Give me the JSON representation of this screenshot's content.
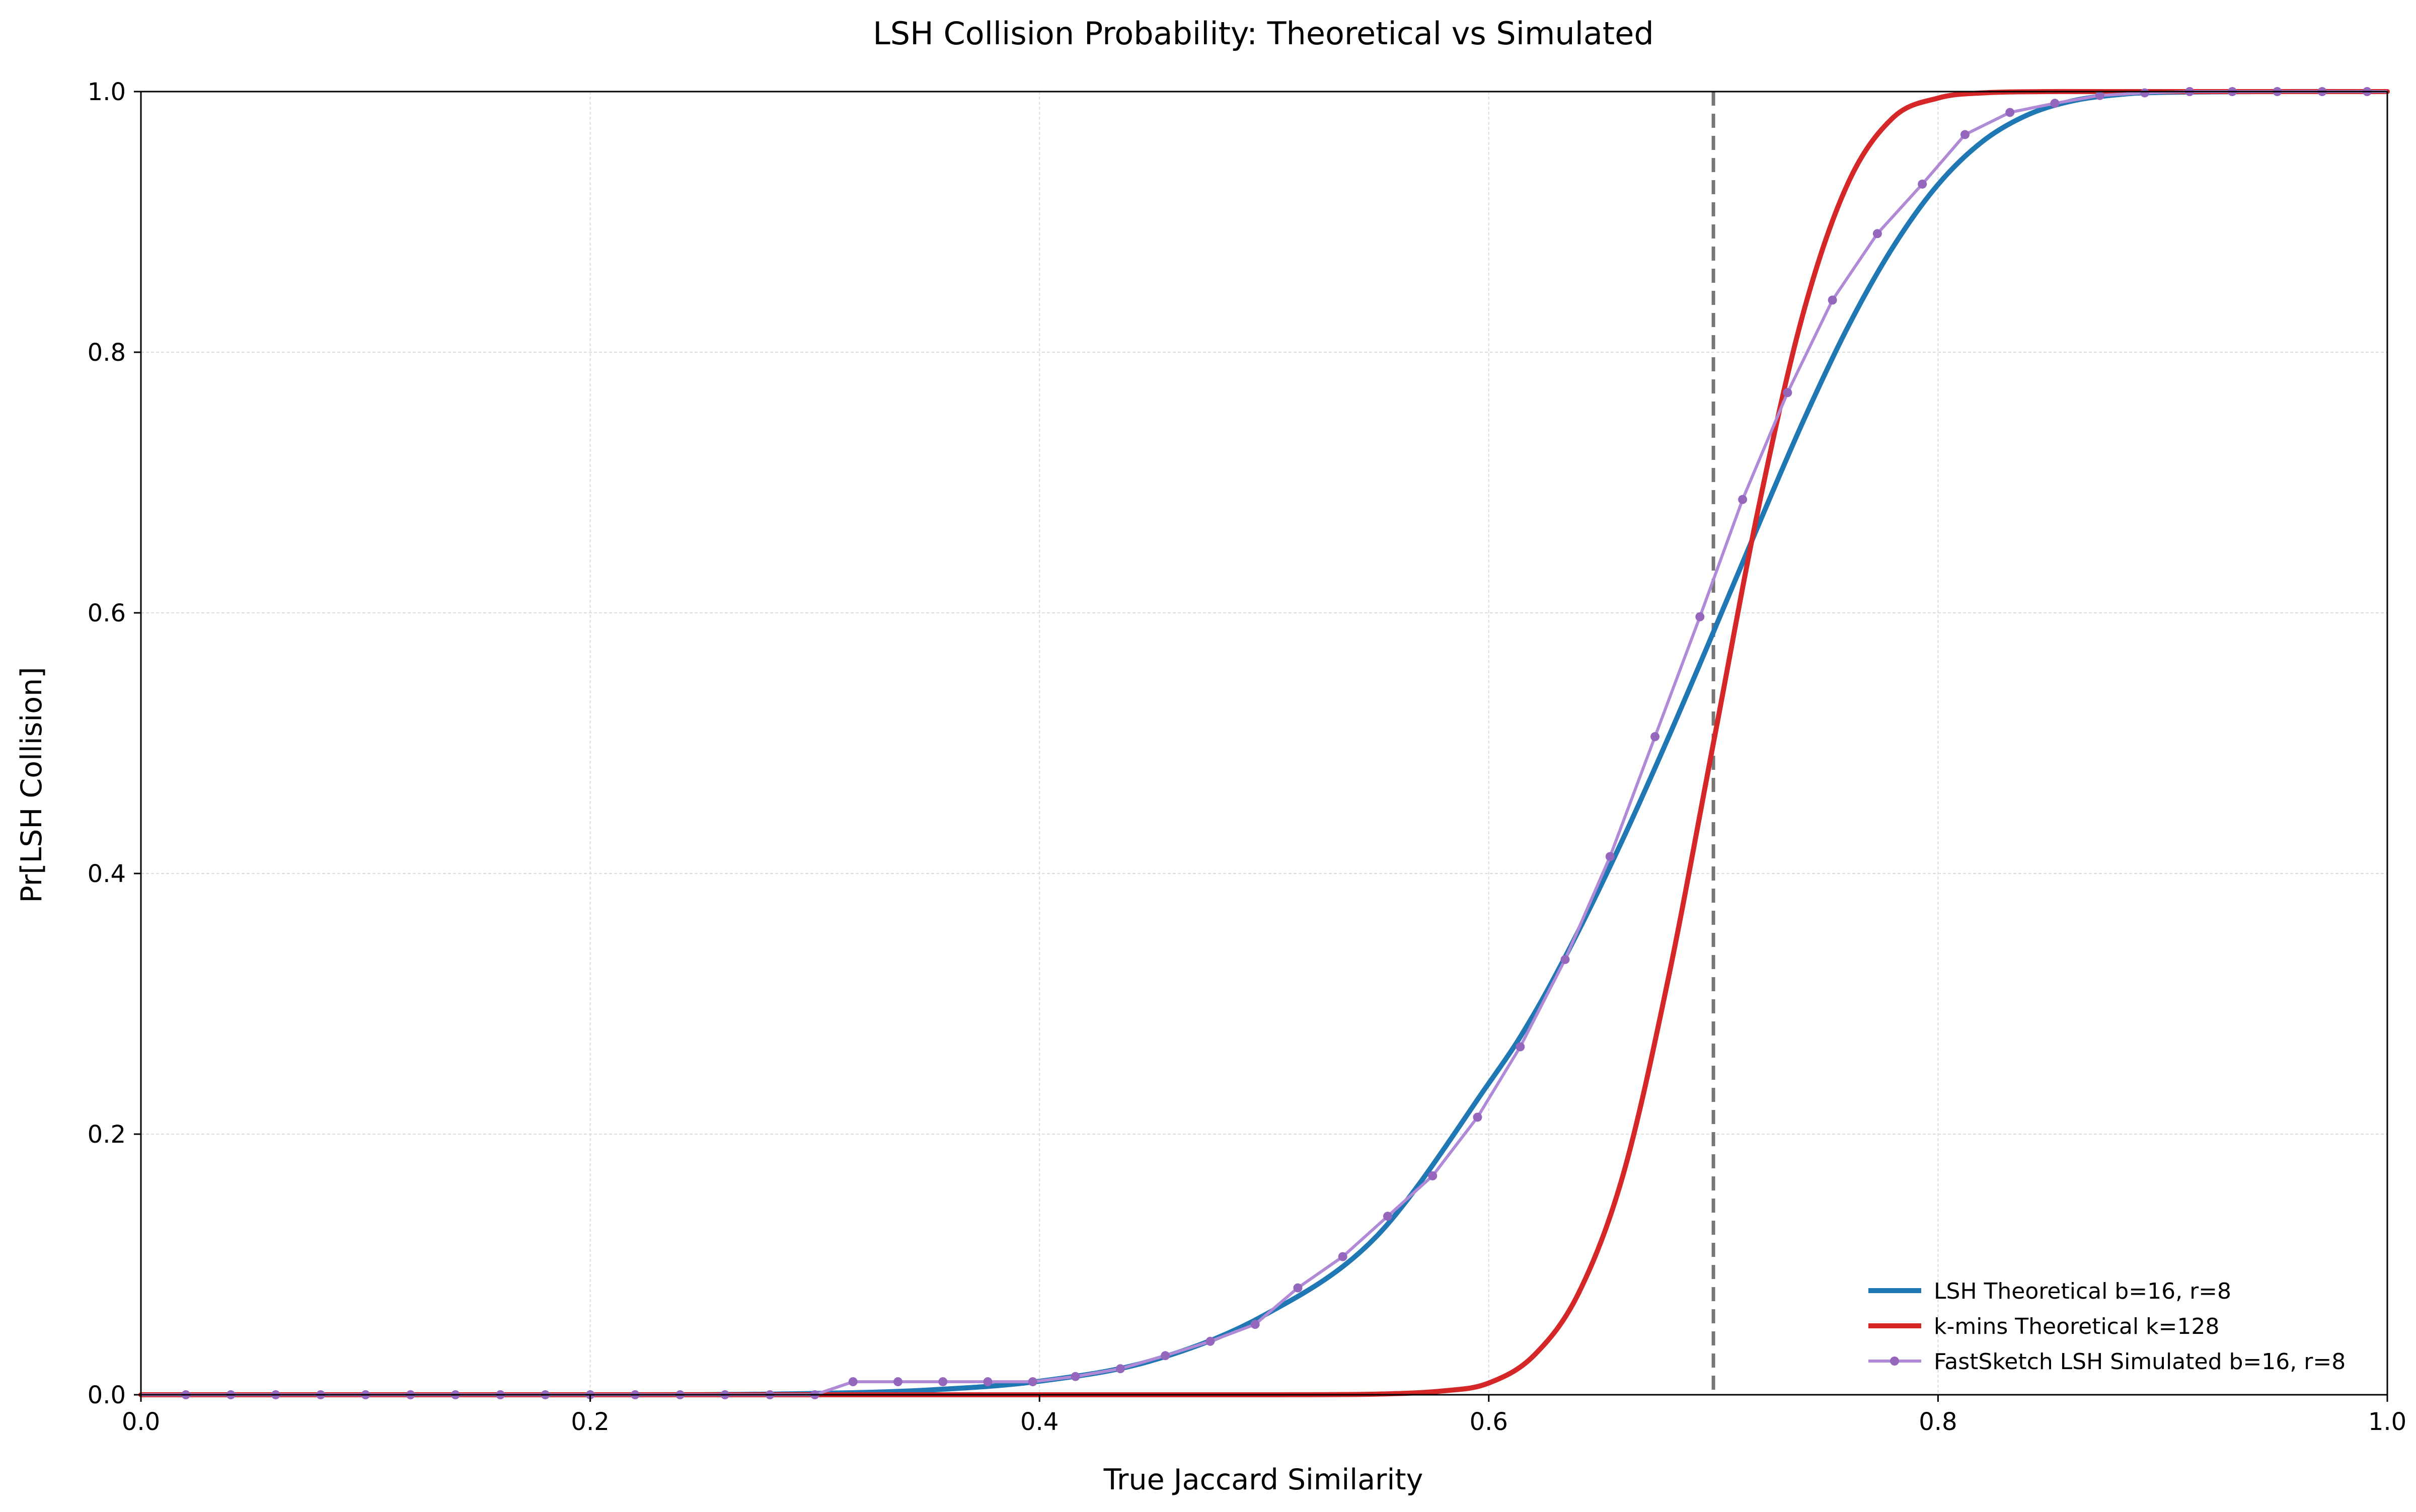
{
  "chart_data": {
    "type": "line",
    "title": "LSH Collision Probability: Theoretical vs Simulated",
    "xlabel": "True Jaccard Similarity",
    "ylabel": "Pr[LSH Collision]",
    "xlim": [
      0.0,
      1.0
    ],
    "ylim": [
      0.0,
      1.0
    ],
    "xticks": [
      "0.0",
      "0.2",
      "0.4",
      "0.6",
      "0.8",
      "1.0"
    ],
    "yticks": [
      "0.0",
      "0.2",
      "0.4",
      "0.6",
      "0.8",
      "1.0"
    ],
    "grid": true,
    "legend_position": "bottom-right",
    "threshold_line": {
      "x": 0.7,
      "style": "dashed",
      "color": "#777777"
    },
    "series": [
      {
        "name": "LSH Theoretical b=16, r=8",
        "kind": "function",
        "formula": "1-(1-s^8)^16",
        "color": "#1f77b4",
        "x": [
          0.0,
          0.05,
          0.1,
          0.15,
          0.2,
          0.25,
          0.3,
          0.35,
          0.4,
          0.45,
          0.5,
          0.55,
          0.6,
          0.62,
          0.64,
          0.66,
          0.68,
          0.7,
          0.72,
          0.74,
          0.76,
          0.78,
          0.8,
          0.82,
          0.84,
          0.86,
          0.88,
          0.9,
          0.95,
          1.0
        ],
        "y": [
          0.0,
          0.0,
          0.0,
          0.0,
          0.0,
          0.0001,
          0.001,
          0.0036,
          0.0104,
          0.0262,
          0.061,
          0.1215,
          0.239,
          0.2918,
          0.3561,
          0.4275,
          0.5045,
          0.5852,
          0.6672,
          0.7471,
          0.8198,
          0.8808,
          0.9287,
          0.962,
          0.9822,
          0.9929,
          0.9976,
          0.9994,
          1.0,
          1.0
        ]
      },
      {
        "name": "k-mins Theoretical k=128",
        "kind": "function",
        "color": "#d62728",
        "x": [
          0.0,
          0.1,
          0.2,
          0.3,
          0.4,
          0.5,
          0.55,
          0.58,
          0.6,
          0.62,
          0.64,
          0.66,
          0.68,
          0.7,
          0.72,
          0.74,
          0.76,
          0.78,
          0.8,
          0.82,
          0.85,
          0.9,
          1.0
        ],
        "y": [
          0.0,
          0.0,
          0.0,
          0.0,
          0.0,
          0.0,
          0.0005,
          0.003,
          0.009,
          0.03,
          0.078,
          0.17,
          0.32,
          0.5,
          0.68,
          0.83,
          0.93,
          0.98,
          0.995,
          0.999,
          1.0,
          1.0,
          1.0
        ]
      },
      {
        "name": "FastSketch LSH Simulated b=16, r=8",
        "kind": "points",
        "color": "#9467bd",
        "line_color": "#b08ad6",
        "x": [
          0.0,
          0.02,
          0.04,
          0.06,
          0.08,
          0.1,
          0.12,
          0.14,
          0.16,
          0.18,
          0.2,
          0.22,
          0.24,
          0.26,
          0.28,
          0.3,
          0.317,
          0.337,
          0.357,
          0.377,
          0.397,
          0.416,
          0.436,
          0.456,
          0.476,
          0.496,
          0.515,
          0.535,
          0.555,
          0.575,
          0.595,
          0.614,
          0.634,
          0.654,
          0.674,
          0.694,
          0.713,
          0.733,
          0.753,
          0.773,
          0.793,
          0.812,
          0.832,
          0.852,
          0.872,
          0.892,
          0.912,
          0.931,
          0.951,
          0.971,
          0.991,
          1.0
        ],
        "y": [
          0.0,
          0.0,
          0.0,
          0.0,
          0.0,
          0.0,
          0.0,
          0.0,
          0.0,
          0.0,
          0.0,
          0.0,
          0.0,
          0.0,
          0.0,
          0.0,
          0.01,
          0.01,
          0.01,
          0.01,
          0.01,
          0.014,
          0.02,
          0.03,
          0.041,
          0.054,
          0.082,
          0.106,
          0.137,
          0.168,
          0.213,
          0.267,
          0.334,
          0.413,
          0.505,
          0.597,
          0.687,
          0.769,
          0.84,
          0.891,
          0.929,
          0.967,
          0.984,
          0.991,
          0.997,
          0.999,
          1.0,
          1.0,
          1.0,
          1.0,
          1.0,
          1.0
        ]
      }
    ]
  }
}
